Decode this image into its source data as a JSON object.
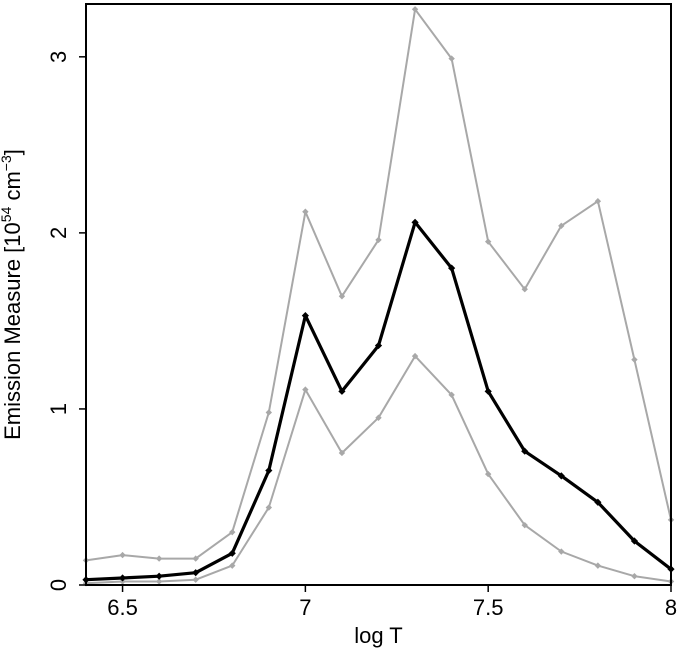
{
  "chart_data": {
    "type": "line",
    "xlabel": "log T",
    "ylabel": {
      "main": "Emission Measure [10",
      "exp1": "54",
      "mid": " cm",
      "exp2": "−3",
      "end": "]"
    },
    "xlim": [
      6.4,
      8.0
    ],
    "ylim": [
      0,
      3.3
    ],
    "xticks": [
      6.5,
      7,
      7.5,
      8
    ],
    "xtick_labels": [
      "6.5",
      "7",
      "7.5",
      "8"
    ],
    "yticks": [
      0,
      1,
      2,
      3
    ],
    "ytick_labels": [
      "0",
      "1",
      "2",
      "3"
    ],
    "grid": false,
    "x": [
      6.4,
      6.5,
      6.6,
      6.7,
      6.8,
      6.9,
      7.0,
      7.1,
      7.2,
      7.3,
      7.4,
      7.5,
      7.6,
      7.7,
      7.8,
      7.9,
      8.0
    ],
    "series": [
      {
        "color": "#000000",
        "values": [
          0.03,
          0.04,
          0.05,
          0.07,
          0.18,
          0.65,
          1.53,
          1.1,
          1.36,
          2.06,
          1.8,
          1.1,
          0.76,
          0.62,
          0.47,
          0.25,
          0.09
        ]
      },
      {
        "color": "#a8a8a8",
        "values": [
          0.14,
          0.17,
          0.15,
          0.15,
          0.3,
          0.98,
          2.12,
          1.64,
          1.96,
          3.27,
          2.99,
          1.95,
          1.68,
          2.04,
          2.18,
          1.28,
          0.37
        ]
      },
      {
        "color": "#a8a8a8",
        "values": [
          0.01,
          0.02,
          0.02,
          0.03,
          0.11,
          0.44,
          1.11,
          0.75,
          0.95,
          1.3,
          1.08,
          0.63,
          0.34,
          0.19,
          0.11,
          0.05,
          0.02
        ]
      }
    ]
  }
}
